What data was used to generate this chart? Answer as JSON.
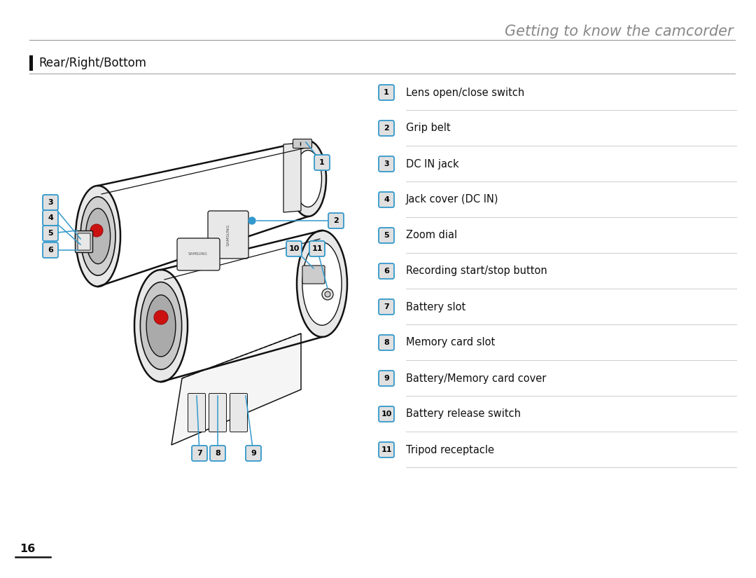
{
  "title": "Getting to know the camcorder",
  "section": "Rear/Right/Bottom",
  "page_number": "16",
  "items": [
    {
      "num": "1",
      "desc": "Lens open/close switch"
    },
    {
      "num": "2",
      "desc": "Grip belt"
    },
    {
      "num": "3",
      "desc": "DC IN jack"
    },
    {
      "num": "4",
      "desc": "Jack cover (DC IN)"
    },
    {
      "num": "5",
      "desc": "Zoom dial"
    },
    {
      "num": "6",
      "desc": "Recording start/stop button"
    },
    {
      "num": "7",
      "desc": "Battery slot"
    },
    {
      "num": "8",
      "desc": "Memory card slot"
    },
    {
      "num": "9",
      "desc": "Battery/Memory card cover"
    },
    {
      "num": "10",
      "desc": "Battery release switch"
    },
    {
      "num": "11",
      "desc": "Tripod receptacle"
    }
  ],
  "title_color": "#888888",
  "section_color": "#111111",
  "text_color": "#111111",
  "badge_border_color": "#3399cc",
  "badge_bg_color": "#e0e0e0",
  "badge_text_color": "#000000",
  "blue_line": "#3399cc",
  "section_bar_color": "#111111",
  "bg_color": "#ffffff",
  "divider_top": "#999999",
  "item_line_color": "#cccccc"
}
